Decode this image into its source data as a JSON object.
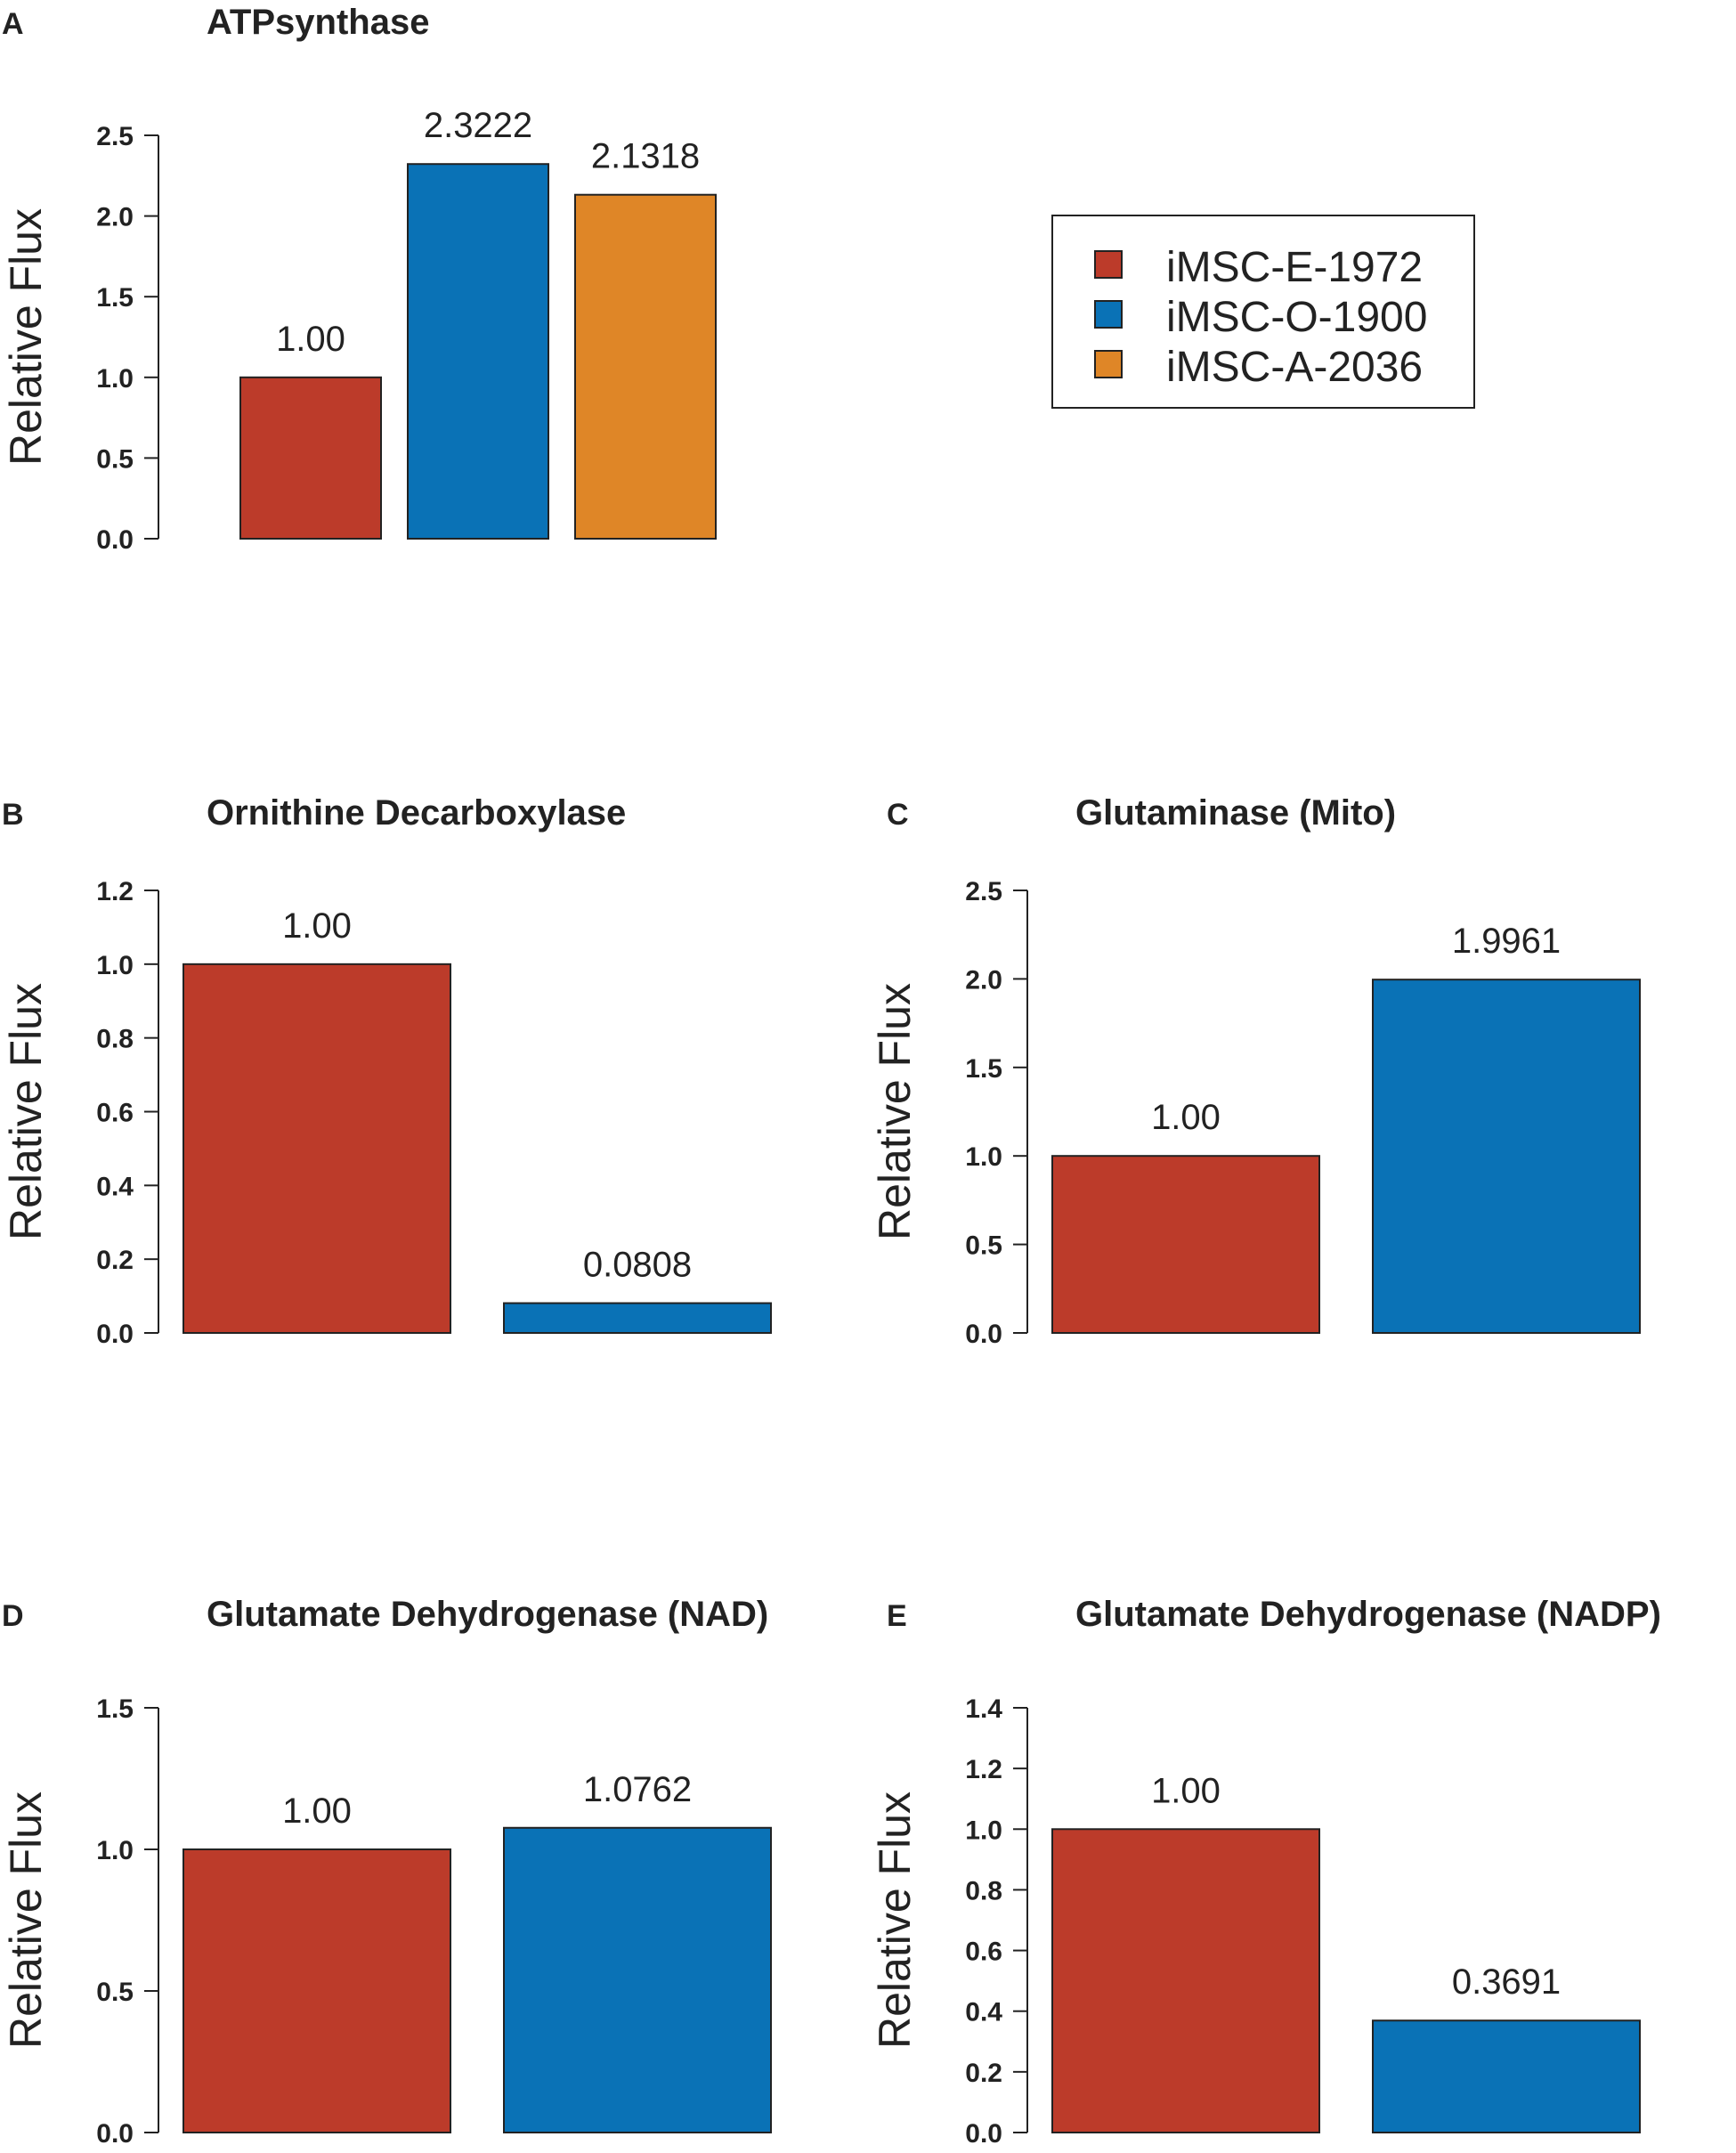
{
  "chart_data": [
    {
      "panel": "A",
      "type": "bar",
      "title": "ATPsynthase",
      "ylabel": "Relative Flux",
      "ylim": [
        0,
        2.5
      ],
      "yticks": [
        "0.0",
        "0.5",
        "1.0",
        "1.5",
        "2.0",
        "2.5"
      ],
      "categories": [
        "iMSC-E-1972",
        "iMSC-O-1900",
        "iMSC-A-2036"
      ],
      "values": [
        1.0,
        2.3222,
        2.1318
      ],
      "value_labels": [
        "1.00",
        "2.3222",
        "2.1318"
      ],
      "colors": [
        "#bc3b2a",
        "#0a72b6",
        "#df8627"
      ]
    },
    {
      "panel": "B",
      "type": "bar",
      "title": "Ornithine Decarboxylase",
      "ylabel": "Relative Flux",
      "ylim": [
        0,
        1.2
      ],
      "yticks": [
        "0.0",
        "0.2",
        "0.4",
        "0.6",
        "0.8",
        "1.0",
        "1.2"
      ],
      "categories": [
        "iMSC-E-1972",
        "iMSC-O-1900"
      ],
      "values": [
        1.0,
        0.0808
      ],
      "value_labels": [
        "1.00",
        "0.0808"
      ],
      "colors": [
        "#bc3b2a",
        "#0a72b6"
      ]
    },
    {
      "panel": "C",
      "type": "bar",
      "title": "Glutaminase (Mito)",
      "ylabel": "Relative Flux",
      "ylim": [
        0,
        2.5
      ],
      "yticks": [
        "0.0",
        "0.5",
        "1.0",
        "1.5",
        "2.0",
        "2.5"
      ],
      "categories": [
        "iMSC-E-1972",
        "iMSC-O-1900"
      ],
      "values": [
        1.0,
        1.9961
      ],
      "value_labels": [
        "1.00",
        "1.9961"
      ],
      "colors": [
        "#bc3b2a",
        "#0a72b6"
      ]
    },
    {
      "panel": "D",
      "type": "bar",
      "title": "Glutamate Dehydrogenase (NAD)",
      "ylabel": "Relative Flux",
      "ylim": [
        0,
        1.5
      ],
      "yticks": [
        "0.0",
        "0.5",
        "1.0",
        "1.5"
      ],
      "categories": [
        "iMSC-E-1972",
        "iMSC-O-1900"
      ],
      "values": [
        1.0,
        1.0762
      ],
      "value_labels": [
        "1.00",
        "1.0762"
      ],
      "colors": [
        "#bc3b2a",
        "#0a72b6"
      ]
    },
    {
      "panel": "E",
      "type": "bar",
      "title": "Glutamate Dehydrogenase (NADP)",
      "ylabel": "Relative Flux",
      "ylim": [
        0,
        1.4
      ],
      "yticks": [
        "0.0",
        "0.2",
        "0.4",
        "0.6",
        "0.8",
        "1.0",
        "1.2",
        "1.4"
      ],
      "categories": [
        "iMSC-E-1972",
        "iMSC-O-1900"
      ],
      "values": [
        1.0,
        0.3691
      ],
      "value_labels": [
        "1.00",
        "0.3691"
      ],
      "colors": [
        "#bc3b2a",
        "#0a72b6"
      ]
    }
  ],
  "legend": {
    "entries": [
      {
        "label": "iMSC-E-1972",
        "color": "#bc3b2a"
      },
      {
        "label": "iMSC-O-1900",
        "color": "#0a72b6"
      },
      {
        "label": "iMSC-A-2036",
        "color": "#df8627"
      }
    ]
  }
}
